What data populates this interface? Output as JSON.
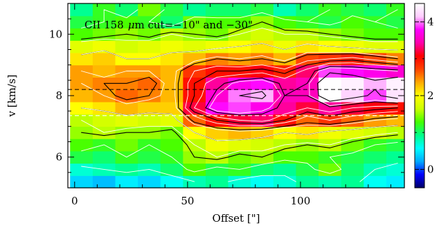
{
  "chart_data": {
    "type": "heatmap",
    "title_parts": {
      "species": "CII 158",
      "mu": "μ",
      "rest": "m cut=−10\" and −30\""
    },
    "xlabel": "Offset [\"]",
    "ylabel": "v [km/s]",
    "xlim": [
      -3,
      146
    ],
    "ylim": [
      5.0,
      11.0
    ],
    "xticks": [
      0,
      50,
      100
    ],
    "yticks": [
      6,
      8,
      10
    ],
    "colorbar": {
      "range": [
        -0.5,
        4.5
      ],
      "ticks": [
        0,
        2,
        4
      ],
      "colors": [
        "#000066",
        "#0000ff",
        "#00aaff",
        "#00ffff",
        "#00ff88",
        "#44ff00",
        "#ccff00",
        "#ffff00",
        "#ffaa00",
        "#ff4400",
        "#ff0000",
        "#ff00aa",
        "#ff00ff",
        "#ffccff",
        "#ffffff"
      ]
    },
    "grid_x": [
      -2,
      8,
      18,
      28,
      38,
      48,
      58,
      68,
      78,
      88,
      98,
      108,
      118,
      128,
      138
    ],
    "grid_x_step": 10,
    "grid_v": [
      5.0,
      5.4,
      5.8,
      6.2,
      6.6,
      7.0,
      7.4,
      7.8,
      8.2,
      8.6,
      9.0,
      9.4,
      9.8,
      10.2,
      10.6
    ],
    "grid_v_step": 0.4,
    "values": [
      [
        0.4,
        0.3,
        0.5,
        0.4,
        0.6,
        0.8,
        0.9,
        0.7,
        0.6,
        0.7,
        0.9,
        0.8,
        0.9,
        0.6,
        0.5
      ],
      [
        0.7,
        0.8,
        0.9,
        0.8,
        1.0,
        1.3,
        1.1,
        1.2,
        1.0,
        0.9,
        1.1,
        1.4,
        1.0,
        0.8,
        0.7
      ],
      [
        1.1,
        1.0,
        1.2,
        1.1,
        1.2,
        1.5,
        1.6,
        1.4,
        1.5,
        1.3,
        1.3,
        1.2,
        1.1,
        1.0,
        0.9
      ],
      [
        1.3,
        1.2,
        1.4,
        1.2,
        1.3,
        1.6,
        1.9,
        1.8,
        1.7,
        1.6,
        1.5,
        1.6,
        1.4,
        1.2,
        1.1
      ],
      [
        1.5,
        1.6,
        1.5,
        1.5,
        1.4,
        2.0,
        2.2,
        2.3,
        2.2,
        2.0,
        2.1,
        1.9,
        1.8,
        1.7,
        1.6
      ],
      [
        1.6,
        1.7,
        1.8,
        1.7,
        1.8,
        2.6,
        3.0,
        3.2,
        3.3,
        3.0,
        2.6,
        2.8,
        2.6,
        2.4,
        2.3
      ],
      [
        2.0,
        2.1,
        2.3,
        2.2,
        2.2,
        3.2,
        3.8,
        3.9,
        3.7,
        3.4,
        3.2,
        3.4,
        3.2,
        3.1,
        3.0
      ],
      [
        2.3,
        2.4,
        2.6,
        2.5,
        2.3,
        3.0,
        3.6,
        4.0,
        4.1,
        3.5,
        3.5,
        4.5,
        4.2,
        3.9,
        4.3
      ],
      [
        2.4,
        2.5,
        2.5,
        2.6,
        2.3,
        3.0,
        3.4,
        3.7,
        3.8,
        3.4,
        3.5,
        4.6,
        4.4,
        4.1,
        4.4
      ],
      [
        2.4,
        2.3,
        2.4,
        2.4,
        2.3,
        2.8,
        3.0,
        3.0,
        3.1,
        2.9,
        3.3,
        3.9,
        3.8,
        3.7,
        3.6
      ],
      [
        2.1,
        2.2,
        2.0,
        2.0,
        2.1,
        2.3,
        2.5,
        2.4,
        2.5,
        2.3,
        2.7,
        2.8,
        2.9,
        2.7,
        2.5
      ],
      [
        1.8,
        1.9,
        1.7,
        1.8,
        1.9,
        1.8,
        1.9,
        2.0,
        2.1,
        1.9,
        2.1,
        2.0,
        1.9,
        1.8,
        1.8
      ],
      [
        1.3,
        1.4,
        1.5,
        1.4,
        1.6,
        1.5,
        1.4,
        1.6,
        1.7,
        1.6,
        1.6,
        1.5,
        1.4,
        1.3,
        1.3
      ],
      [
        1.1,
        1.2,
        1.3,
        1.2,
        1.0,
        1.4,
        1.3,
        1.3,
        1.5,
        1.3,
        1.2,
        1.1,
        1.3,
        1.2,
        1.1
      ],
      [
        0.9,
        1.2,
        1.0,
        1.4,
        1.1,
        0.9,
        1.0,
        1.0,
        1.1,
        0.8,
        1.0,
        1.2,
        1.1,
        1.0,
        1.2
      ]
    ],
    "reference_lines_v": [
      8.2,
      7.35
    ],
    "contour_levels_black": [
      1.5,
      2.0,
      2.5,
      3.0,
      3.5,
      4.0
    ],
    "contour_levels_white": [
      0.8,
      1.2,
      1.6,
      2.0,
      2.4,
      2.8,
      3.2,
      3.6
    ]
  }
}
